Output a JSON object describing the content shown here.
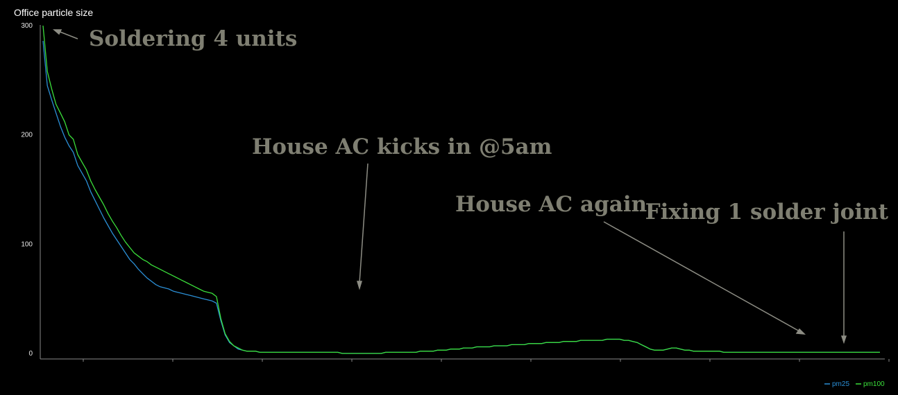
{
  "chart_data": {
    "type": "line",
    "title": "Office particle size",
    "xlabel": "",
    "ylabel": "",
    "ylim": [
      0,
      300
    ],
    "yticks": [
      0,
      100,
      200,
      300
    ],
    "grid": false,
    "legend_position": "bottom-right",
    "x": [
      0,
      1,
      2,
      3,
      4,
      5,
      6,
      7,
      8,
      9,
      10,
      11,
      12,
      13,
      14,
      15,
      16,
      17,
      18,
      19,
      20,
      21,
      22,
      23,
      24,
      25,
      26,
      27,
      28,
      29,
      30,
      31,
      32,
      33,
      34,
      35,
      36,
      37,
      38,
      39,
      40,
      41,
      42,
      43,
      44,
      45,
      46,
      47,
      48,
      49,
      50,
      51,
      52,
      53,
      54,
      55,
      56,
      57,
      58,
      59,
      60,
      61,
      62,
      63,
      64,
      65,
      66,
      67,
      68,
      69,
      70,
      71,
      72,
      73,
      74,
      75,
      76,
      77,
      78,
      79,
      80,
      81,
      82,
      83,
      84,
      85,
      86,
      87,
      88,
      89,
      90,
      91,
      92,
      93,
      94,
      95,
      96,
      97,
      98,
      99,
      100,
      101,
      102,
      103,
      104,
      105,
      106,
      107,
      108,
      109,
      110,
      111,
      112,
      113,
      114,
      115,
      116,
      117,
      118,
      119,
      120,
      121,
      122,
      123,
      124,
      125,
      126,
      127,
      128,
      129,
      130,
      131,
      132,
      133,
      134,
      135,
      136,
      137,
      138,
      139,
      140,
      141,
      142,
      143,
      144,
      145,
      146,
      147,
      148,
      149,
      150,
      151,
      152,
      153,
      154,
      155,
      156,
      157,
      158,
      159,
      160,
      161,
      162,
      163,
      164,
      165,
      166,
      167,
      168,
      169,
      170,
      171,
      172,
      173,
      174,
      175,
      176,
      177,
      178,
      179,
      180,
      181,
      182,
      183,
      184,
      185,
      186,
      187,
      188,
      189,
      190,
      191,
      192,
      193
    ],
    "series": [
      {
        "name": "pm25",
        "color": "#2b8fd6",
        "values": [
          286,
          245,
          232,
          220,
          208,
          198,
          190,
          184,
          172,
          165,
          158,
          148,
          140,
          132,
          124,
          117,
          110,
          104,
          98,
          92,
          86,
          82,
          77,
          73,
          69,
          66,
          63,
          61,
          60,
          59,
          57,
          56,
          55,
          54,
          53,
          52,
          51,
          50,
          49,
          48,
          46,
          30,
          17,
          10,
          7,
          4,
          3,
          2,
          2,
          2,
          1,
          1,
          1,
          1,
          1,
          1,
          1,
          1,
          1,
          1,
          1,
          1,
          1,
          1,
          1,
          1,
          1,
          1,
          1,
          0,
          0,
          0,
          0,
          0,
          0,
          0,
          0,
          0,
          0,
          1,
          1,
          1,
          1,
          1,
          1,
          1,
          1,
          2,
          2,
          2,
          2,
          3,
          3,
          3,
          4,
          4,
          4,
          5,
          5,
          5,
          6,
          6,
          6,
          6,
          7,
          7,
          7,
          7,
          8,
          8,
          8,
          8,
          9,
          9,
          9,
          9,
          10,
          10,
          10,
          10,
          11,
          11,
          11,
          11,
          12,
          12,
          12,
          12,
          12,
          12,
          13,
          13,
          13,
          13,
          12,
          12,
          11,
          10,
          8,
          6,
          4,
          3,
          3,
          3,
          4,
          5,
          5,
          4,
          3,
          3,
          2,
          2,
          2,
          2,
          2,
          2,
          2,
          1,
          1,
          1,
          1,
          1,
          1,
          1,
          1,
          1,
          1,
          1,
          1,
          1,
          1,
          1,
          1,
          1,
          1,
          1,
          1,
          1,
          1,
          1,
          1,
          1,
          1,
          1,
          1,
          1,
          1,
          1,
          1,
          1,
          1,
          1,
          1,
          1
        ]
      },
      {
        "name": "pm100",
        "color": "#3be03b",
        "values": [
          300,
          258,
          242,
          228,
          220,
          212,
          200,
          196,
          182,
          175,
          168,
          158,
          150,
          143,
          136,
          128,
          121,
          115,
          108,
          102,
          97,
          92,
          89,
          86,
          84,
          81,
          79,
          77,
          75,
          73,
          71,
          69,
          67,
          65,
          63,
          61,
          59,
          57,
          56,
          55,
          52,
          32,
          18,
          11,
          7,
          5,
          3,
          2,
          2,
          2,
          1,
          1,
          1,
          1,
          1,
          1,
          1,
          1,
          1,
          1,
          1,
          1,
          1,
          1,
          1,
          1,
          1,
          1,
          1,
          0,
          0,
          0,
          0,
          0,
          0,
          0,
          0,
          0,
          0,
          1,
          1,
          1,
          1,
          1,
          1,
          1,
          1,
          2,
          2,
          2,
          2,
          3,
          3,
          3,
          4,
          4,
          4,
          5,
          5,
          5,
          6,
          6,
          6,
          6,
          7,
          7,
          7,
          7,
          8,
          8,
          8,
          8,
          9,
          9,
          9,
          9,
          10,
          10,
          10,
          10,
          11,
          11,
          11,
          11,
          12,
          12,
          12,
          12,
          12,
          12,
          13,
          13,
          13,
          13,
          12,
          12,
          11,
          10,
          8,
          6,
          4,
          3,
          3,
          3,
          4,
          5,
          5,
          4,
          3,
          3,
          2,
          2,
          2,
          2,
          2,
          2,
          2,
          1,
          1,
          1,
          1,
          1,
          1,
          1,
          1,
          1,
          1,
          1,
          1,
          1,
          1,
          1,
          1,
          1,
          1,
          1,
          1,
          1,
          1,
          1,
          1,
          1,
          1,
          1,
          1,
          1,
          1,
          1,
          1,
          1,
          1,
          1,
          1,
          1
        ]
      }
    ],
    "annotations": [
      {
        "text": "Soldering 4 units",
        "x": 0,
        "y": 300
      },
      {
        "text": "House AC kicks in @5am",
        "x": 45,
        "y": 58
      },
      {
        "text": "House AC again",
        "x": 107,
        "y": 13
      },
      {
        "text": "Fixing 1 solder joint",
        "x": 113,
        "y": 10
      }
    ],
    "legend": [
      {
        "label": "pm25",
        "color": "#2b8fd6"
      },
      {
        "label": "pm100",
        "color": "#3be03b"
      }
    ]
  }
}
